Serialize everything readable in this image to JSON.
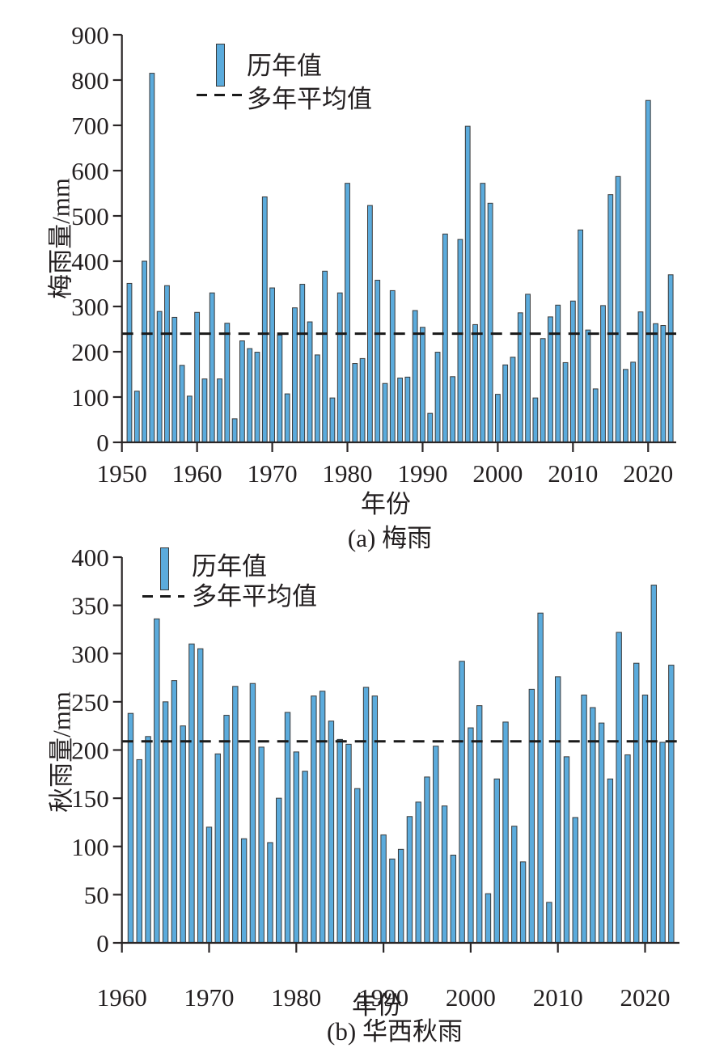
{
  "chart_data": [
    {
      "type": "bar",
      "panel": "a",
      "title": "(a) 梅雨",
      "xlabel": "年份",
      "ylabel": "梅雨量/mm",
      "legend": [
        "历年值",
        "多年平均值"
      ],
      "bar_color": "#5babdc",
      "bar_edge_color": "#3a3a3a",
      "mean_line_color": "#1a1a1a",
      "axis_color": "#2a2627",
      "mean_value": 240,
      "ylim": [
        0,
        900
      ],
      "ytick_step": 100,
      "xticks": [
        1950,
        1960,
        1970,
        1980,
        1990,
        2000,
        2010,
        2020
      ],
      "start_year": 1951,
      "end_year": 2023,
      "values": [
        351,
        113,
        400,
        815,
        289,
        346,
        276,
        170,
        102,
        287,
        140,
        330,
        140,
        263,
        52,
        224,
        207,
        199,
        542,
        341,
        237,
        107,
        297,
        349,
        266,
        193,
        378,
        98,
        330,
        572,
        174,
        185,
        523,
        358,
        130,
        335,
        142,
        144,
        291,
        254,
        64,
        199,
        460,
        145,
        448,
        698,
        260,
        572,
        528,
        106,
        171,
        188,
        286,
        327,
        98,
        229,
        277,
        303,
        176,
        312,
        469,
        248,
        118,
        302,
        547,
        587,
        161,
        177,
        288,
        755,
        262,
        258,
        370
      ]
    },
    {
      "type": "bar",
      "panel": "b",
      "title": "(b) 华西秋雨",
      "xlabel": "年份",
      "ylabel": "秋雨量/mm",
      "legend": [
        "历年值",
        "多年平均值"
      ],
      "bar_color": "#5babdc",
      "bar_edge_color": "#3a3a3a",
      "mean_line_color": "#1a1a1a",
      "axis_color": "#2a2627",
      "mean_value": 209,
      "ylim": [
        0,
        400
      ],
      "ytick_step": 50,
      "xticks": [
        1960,
        1970,
        1980,
        1990,
        2000,
        2010,
        2020
      ],
      "start_year": 1961,
      "end_year": 2023,
      "values": [
        238,
        190,
        214,
        336,
        250,
        272,
        225,
        310,
        305,
        120,
        196,
        236,
        266,
        108,
        269,
        203,
        104,
        150,
        239,
        198,
        178,
        256,
        261,
        230,
        211,
        206,
        160,
        265,
        256,
        112,
        87,
        97,
        131,
        146,
        172,
        204,
        142,
        91,
        292,
        223,
        246,
        51,
        170,
        229,
        121,
        84,
        263,
        342,
        42,
        276,
        193,
        130,
        257,
        244,
        228,
        170,
        322,
        195,
        290,
        257,
        371,
        208,
        288
      ]
    }
  ]
}
